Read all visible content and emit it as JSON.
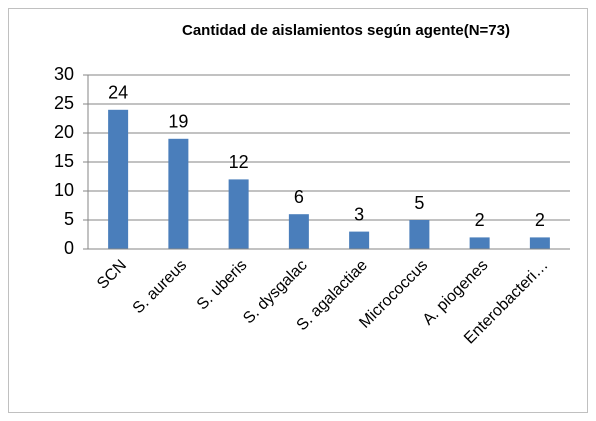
{
  "chart_data": {
    "type": "bar",
    "title": "Cantidad de aislamientos según agente(N=73)",
    "categories": [
      "SCN",
      "S. aureus",
      "S. uberis",
      "S. dysgalac",
      "S. agalactiae",
      "Micrococcus",
      "A. piogenes",
      "Enterobacteri…"
    ],
    "values": [
      24,
      19,
      12,
      6,
      3,
      5,
      2,
      2
    ],
    "color": "#4a7ebb",
    "ylim": [
      0,
      30
    ],
    "yticks": [
      0,
      5,
      10,
      15,
      20,
      25,
      30
    ],
    "grid": true
  }
}
